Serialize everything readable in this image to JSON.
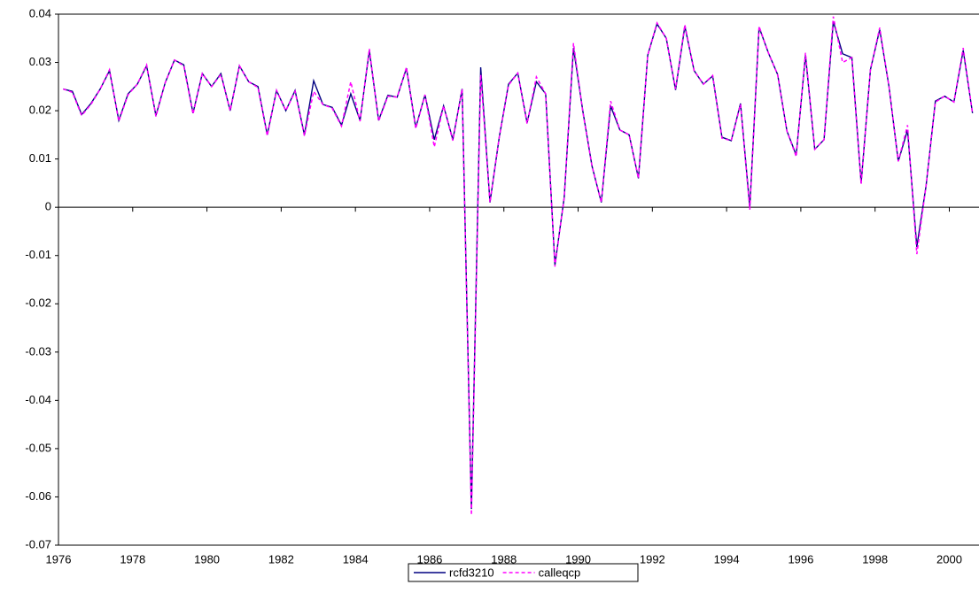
{
  "chart_data": {
    "type": "line",
    "x": [
      1976.125,
      1976.375,
      1976.625,
      1976.875,
      1977.125,
      1977.375,
      1977.625,
      1977.875,
      1978.125,
      1978.375,
      1978.625,
      1978.875,
      1979.125,
      1979.375,
      1979.625,
      1979.875,
      1980.125,
      1980.375,
      1980.625,
      1980.875,
      1981.125,
      1981.375,
      1981.625,
      1981.875,
      1982.125,
      1982.375,
      1982.625,
      1982.875,
      1983.125,
      1983.375,
      1983.625,
      1983.875,
      1984.125,
      1984.375,
      1984.625,
      1984.875,
      1985.125,
      1985.375,
      1985.625,
      1985.875,
      1986.125,
      1986.375,
      1986.625,
      1986.875,
      1987.125,
      1987.375,
      1987.625,
      1987.875,
      1988.125,
      1988.375,
      1988.625,
      1988.875,
      1989.125,
      1989.375,
      1989.625,
      1989.875,
      1990.125,
      1990.375,
      1990.625,
      1990.875,
      1991.125,
      1991.375,
      1991.625,
      1991.875,
      1992.125,
      1992.375,
      1992.625,
      1992.875,
      1993.125,
      1993.375,
      1993.625,
      1993.875,
      1994.125,
      1994.375,
      1994.625,
      1994.875,
      1995.125,
      1995.375,
      1995.625,
      1995.875,
      1996.125,
      1996.375,
      1996.625,
      1996.875,
      1997.125,
      1997.375,
      1997.625,
      1997.875,
      1998.125,
      1998.375,
      1998.625,
      1998.875,
      1999.125,
      1999.375,
      1999.625,
      1999.875,
      2000.125,
      2000.375,
      2000.625
    ],
    "series": [
      {
        "name": "rcfd3210",
        "color": "#000080",
        "style": "solid",
        "values": [
          0.0245,
          0.024,
          0.0192,
          0.0215,
          0.0245,
          0.0283,
          0.018,
          0.0235,
          0.0255,
          0.0293,
          0.019,
          0.0258,
          0.0305,
          0.0295,
          0.0195,
          0.0277,
          0.025,
          0.0277,
          0.02,
          0.0293,
          0.026,
          0.025,
          0.015,
          0.0242,
          0.02,
          0.0242,
          0.015,
          0.0262,
          0.0213,
          0.0207,
          0.017,
          0.0235,
          0.018,
          0.0325,
          0.018,
          0.0232,
          0.0228,
          0.0288,
          0.0165,
          0.0233,
          0.014,
          0.021,
          0.014,
          0.0245,
          -0.0625,
          0.029,
          0.001,
          0.0145,
          0.0255,
          0.0278,
          0.0175,
          0.026,
          0.0235,
          -0.012,
          0.002,
          0.033,
          0.02,
          0.0085,
          0.001,
          0.021,
          0.016,
          0.015,
          0.006,
          0.0315,
          0.038,
          0.035,
          0.0243,
          0.0375,
          0.0283,
          0.0255,
          0.0272,
          0.0145,
          0.0138,
          0.0215,
          0.0,
          0.0373,
          0.032,
          0.0275,
          0.0158,
          0.0108,
          0.0315,
          0.012,
          0.014,
          0.0385,
          0.0318,
          0.031,
          0.005,
          0.0285,
          0.0368,
          0.025,
          0.0095,
          0.016,
          -0.0082,
          0.0045,
          0.022,
          0.023,
          0.0218,
          0.0325,
          0.0195
        ]
      },
      {
        "name": "calleqcp",
        "color": "#ff00ff",
        "style": "dashed",
        "values": [
          0.0245,
          0.0238,
          0.019,
          0.0213,
          0.0245,
          0.0285,
          0.0178,
          0.0233,
          0.0255,
          0.0295,
          0.0188,
          0.0258,
          0.0305,
          0.0293,
          0.0193,
          0.0277,
          0.025,
          0.0275,
          0.02,
          0.0293,
          0.026,
          0.0248,
          0.0148,
          0.0242,
          0.02,
          0.024,
          0.0148,
          0.024,
          0.0213,
          0.0205,
          0.0168,
          0.026,
          0.0178,
          0.0328,
          0.0178,
          0.023,
          0.0228,
          0.029,
          0.0163,
          0.0233,
          0.0125,
          0.021,
          0.0138,
          0.0245,
          -0.0638,
          0.0275,
          0.001,
          0.0145,
          0.0253,
          0.0278,
          0.0173,
          0.027,
          0.0235,
          -0.0123,
          0.002,
          0.034,
          0.0198,
          0.0085,
          0.001,
          0.022,
          0.016,
          0.015,
          0.006,
          0.0315,
          0.0382,
          0.035,
          0.0245,
          0.0378,
          0.0283,
          0.0255,
          0.0273,
          0.0143,
          0.0138,
          0.0213,
          -0.0005,
          0.0375,
          0.032,
          0.0275,
          0.0158,
          0.0105,
          0.032,
          0.012,
          0.014,
          0.0395,
          0.03,
          0.031,
          0.0048,
          0.0285,
          0.0372,
          0.025,
          0.0095,
          0.017,
          -0.0097,
          0.0045,
          0.0218,
          0.023,
          0.0218,
          0.033,
          0.0195
        ]
      }
    ],
    "xlim": [
      1976,
      2000.8
    ],
    "xticks": [
      1976,
      1978,
      1980,
      1982,
      1984,
      1986,
      1988,
      1990,
      1992,
      1994,
      1996,
      1998,
      2000
    ],
    "ylim": [
      -0.07,
      0.04
    ],
    "yticks": [
      -0.07,
      -0.06,
      -0.05,
      -0.04,
      -0.03,
      -0.02,
      -0.01,
      0,
      0.01,
      0.02,
      0.03,
      0.04
    ],
    "legend": "bottom"
  }
}
